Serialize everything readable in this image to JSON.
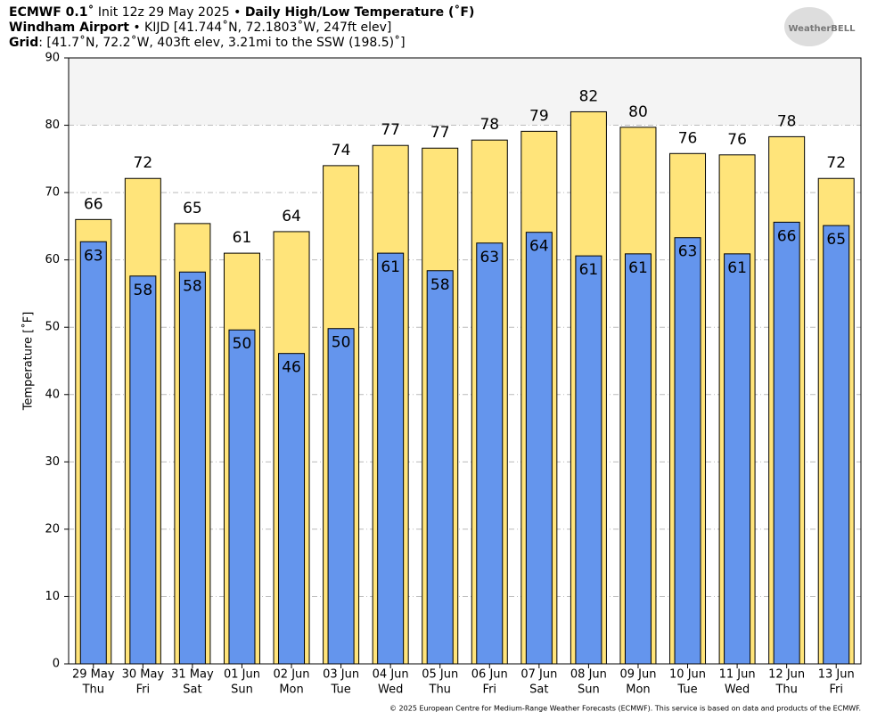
{
  "chart_data": {
    "type": "bar",
    "title_bold": "ECMWF 0.1˚",
    "title_rest": "Init 12z 29 May 2025 •",
    "title_bold2": "Daily High/Low Temperature (˚F)",
    "station_bold": "Windham Airport",
    "station_rest": "• KIJD [41.744˚N, 72.1803˚W, 247ft elev]",
    "grid_bold": "Grid",
    "grid_rest": ": [41.7˚N, 72.2˚W, 403ft elev, 3.21mi to the SSW (198.5)˚]",
    "logo": "WeatherBELL",
    "footer": "© 2025 European Centre for Medium-Range Weather Forecasts (ECMWF). This service is based on data and products of the ECMWF.",
    "ylabel": "Temperature [˚F]",
    "categories": [
      "29 May",
      "30 May",
      "31 May",
      "01 Jun",
      "02 Jun",
      "03 Jun",
      "04 Jun",
      "05 Jun",
      "06 Jun",
      "07 Jun",
      "08 Jun",
      "09 Jun",
      "10 Jun",
      "11 Jun",
      "12 Jun",
      "13 Jun"
    ],
    "weekdays": [
      "Thu",
      "Fri",
      "Sat",
      "Sun",
      "Mon",
      "Tue",
      "Wed",
      "Thu",
      "Fri",
      "Sat",
      "Sun",
      "Mon",
      "Tue",
      "Wed",
      "Thu",
      "Fri"
    ],
    "series": [
      {
        "name": "High",
        "color": "#ffe47a",
        "values": [
          66.0,
          72.1,
          65.4,
          61.0,
          64.2,
          74.0,
          77.0,
          76.6,
          77.8,
          79.1,
          82.0,
          79.7,
          75.8,
          75.6,
          78.3,
          72.1
        ],
        "value_labels": [
          "66",
          "72",
          "65",
          "61",
          "64",
          "74",
          "77",
          "77",
          "78",
          "79",
          "82",
          "80",
          "76",
          "76",
          "78",
          "72"
        ]
      },
      {
        "name": "Low",
        "color": "#6495ed",
        "values": [
          62.7,
          57.6,
          58.2,
          49.6,
          46.1,
          49.8,
          61.0,
          58.4,
          62.5,
          64.1,
          60.6,
          60.9,
          63.3,
          60.9,
          65.6,
          65.1
        ],
        "value_labels": [
          "63",
          "58",
          "58",
          "50",
          "46",
          "50",
          "61",
          "58",
          "63",
          "64",
          "61",
          "61",
          "63",
          "61",
          "66",
          "65"
        ]
      }
    ],
    "ylim": [
      0,
      90
    ],
    "yticks": [
      0,
      10,
      20,
      30,
      40,
      50,
      60,
      70,
      80,
      90
    ],
    "grid": true,
    "shade_above": 80
  }
}
